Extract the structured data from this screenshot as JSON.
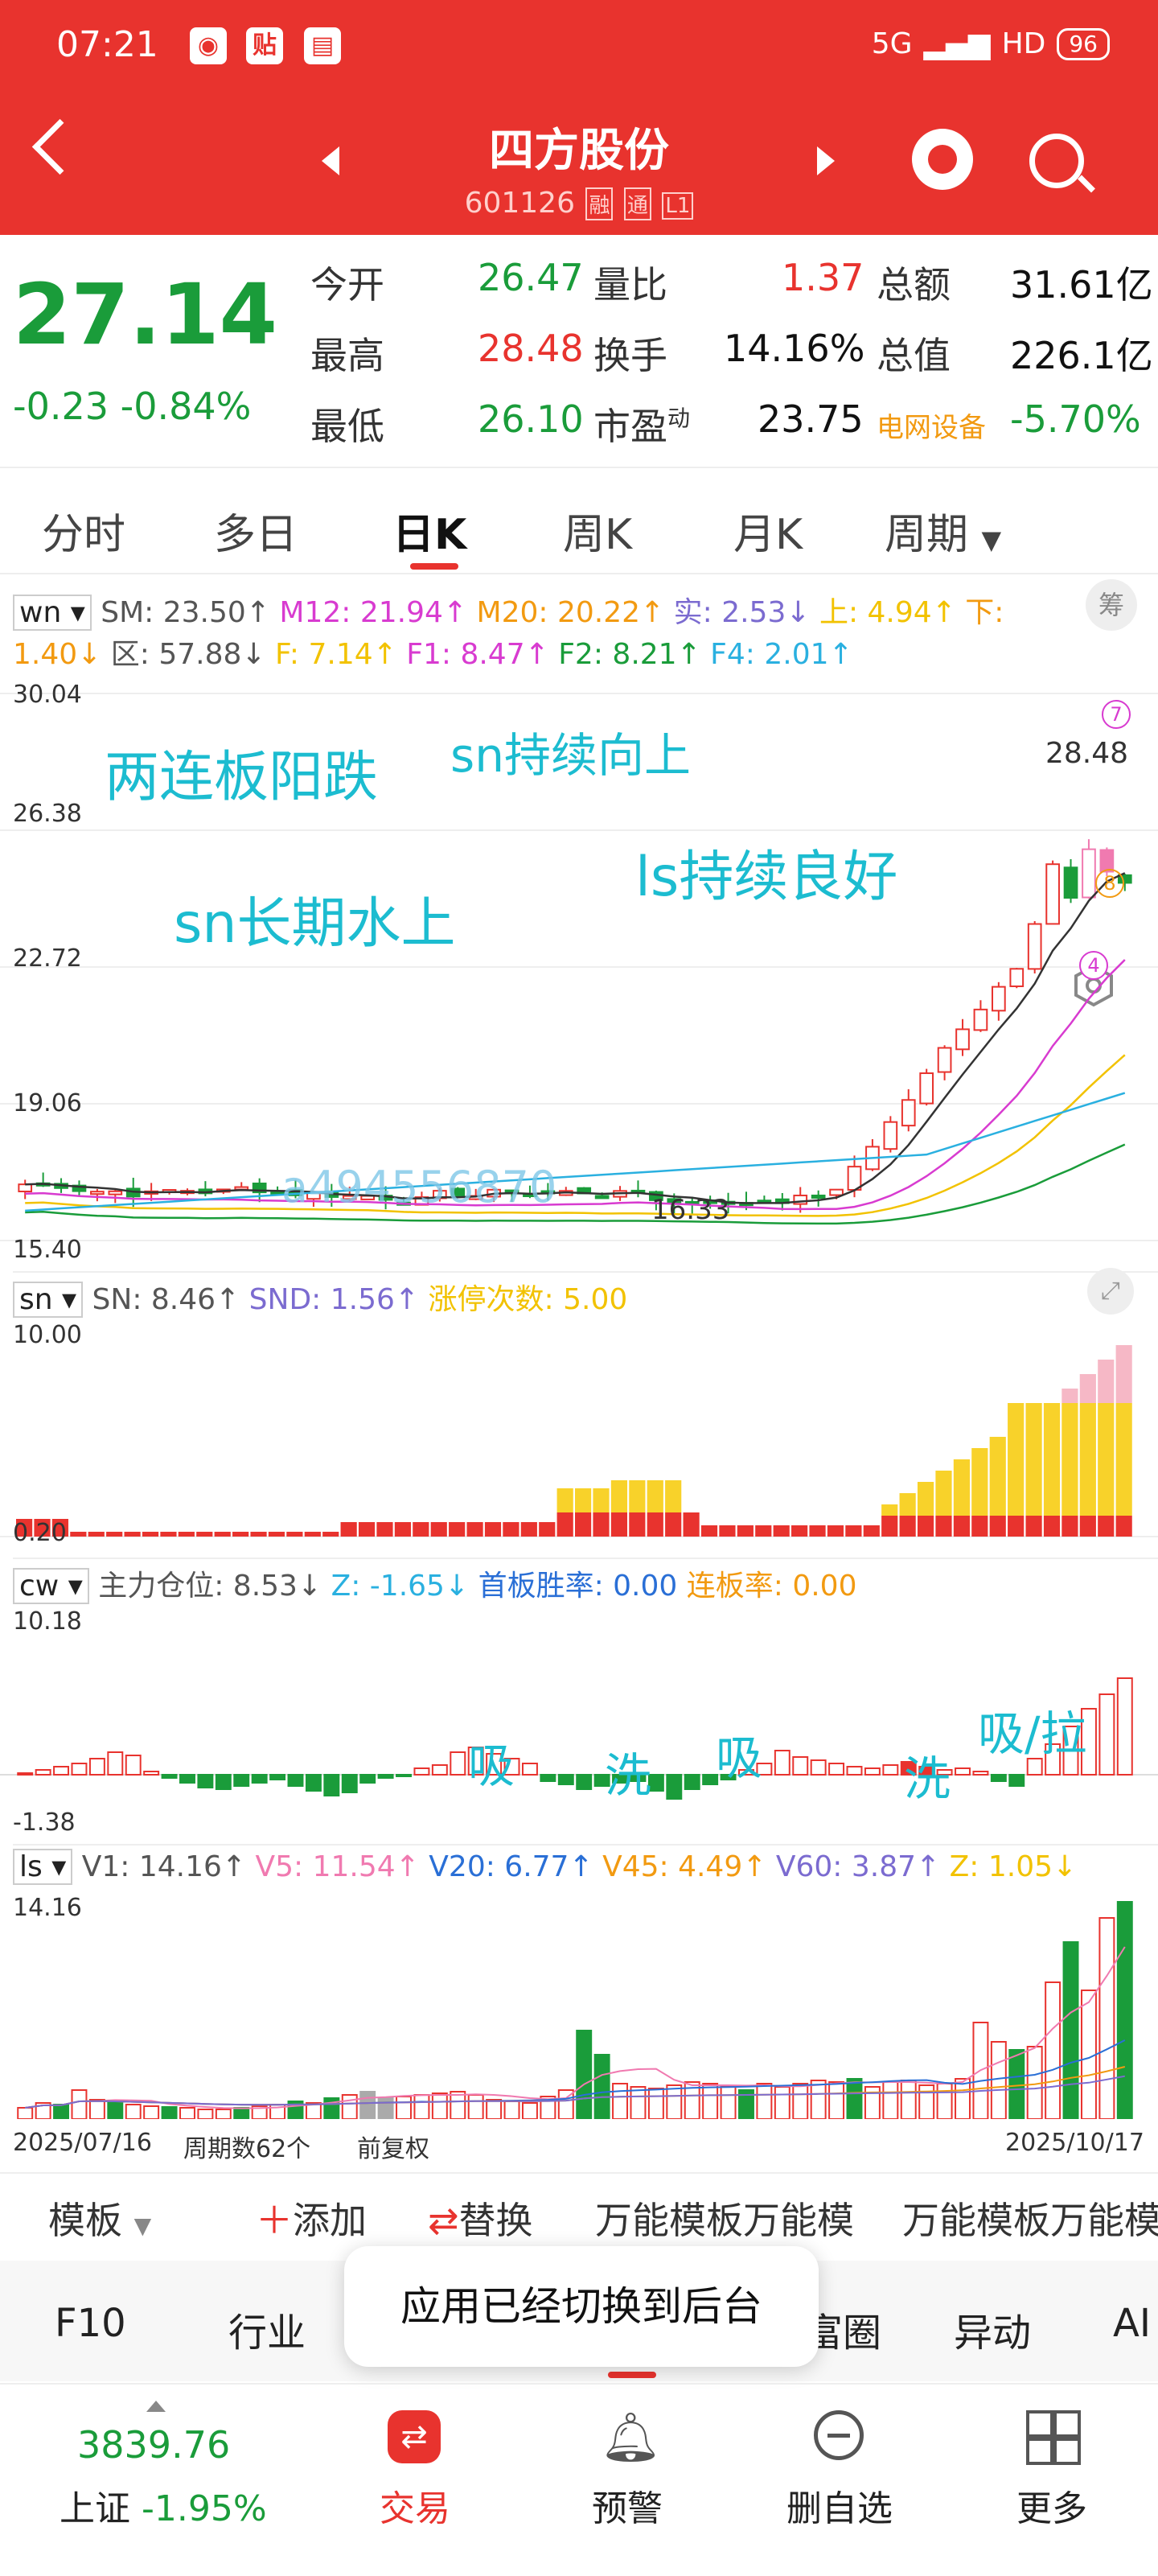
{
  "status": {
    "time": "07:21",
    "network": "5G",
    "hd": "HD",
    "battery": "96"
  },
  "header": {
    "title": "四方股份",
    "code": "601126",
    "tags": [
      "融",
      "通",
      "L1"
    ]
  },
  "quote": {
    "price": "27.14",
    "change": "-0.23",
    "change_pct": "-0.84%",
    "fields": [
      {
        "label": "今开",
        "value": "26.47"
      },
      {
        "label": "量比",
        "value": "1.37"
      },
      {
        "label": "总额",
        "value": "31.61亿"
      },
      {
        "label": "最高",
        "value": "28.48"
      },
      {
        "label": "换手",
        "value": "14.16%"
      },
      {
        "label": "总值",
        "value": "226.1亿"
      },
      {
        "label": "最低",
        "value": "26.10"
      },
      {
        "label": "市盈",
        "value": "23.75",
        "sup": "动"
      },
      {
        "label": "电网设备",
        "value": "-5.70%"
      }
    ]
  },
  "tabs": [
    "分时",
    "多日",
    "日K",
    "周K",
    "月K",
    "周期"
  ],
  "main_chart": {
    "selector": "wn",
    "legend": [
      {
        "text": "SM: 23.50↑",
        "color": "#555"
      },
      {
        "text": "M12: 21.94↑",
        "color": "#d83bd0"
      },
      {
        "text": "M20: 20.22↑",
        "color": "#f29a11"
      },
      {
        "text": "实: 2.53↓",
        "color": "#7b6bd0"
      },
      {
        "text": "上: 4.94↑",
        "color": "#f2c200"
      },
      {
        "text": "下:",
        "color": "#f29a11"
      }
    ],
    "legend2": [
      {
        "text": "1.40↓",
        "color": "#f29a11"
      },
      {
        "text": "区: 57.88↓",
        "color": "#555"
      },
      {
        "text": "F: 7.14↑",
        "color": "#f2c200"
      },
      {
        "text": "F1: 8.47↑",
        "color": "#d83bd0"
      },
      {
        "text": "F2: 8.21↑",
        "color": "#1a9c3a"
      },
      {
        "text": "F4: 2.01↑",
        "color": "#2ab0e0"
      }
    ],
    "right_button": "筹",
    "y_ticks": [
      "30.04",
      "26.38",
      "22.72",
      "19.06",
      "15.40"
    ],
    "high_label": "28.48",
    "low_label": "16.33",
    "watermark": "a494556870",
    "annotations": [
      "两连板阳跌",
      "sn持续向上",
      "ls持续良好",
      "sn长期水上"
    ],
    "markers": [
      "7",
      "8",
      "4"
    ]
  },
  "sn_panel": {
    "selector": "sn",
    "legend": [
      {
        "text": "SN: 8.46↑",
        "color": "#555"
      },
      {
        "text": "SND: 1.56↑",
        "color": "#7b6bd0"
      },
      {
        "text": "涨停次数: 5.00",
        "color": "#f2c200"
      }
    ],
    "y_ticks": [
      "10.00",
      "0.20"
    ]
  },
  "cw_panel": {
    "selector": "cw",
    "legend": [
      {
        "text": "主力仓位: 8.53↓",
        "color": "#555"
      },
      {
        "text": "Z: -1.65↓",
        "color": "#2ab0e0"
      },
      {
        "text": "首板胜率: 0.00",
        "color": "#2a6fd6"
      },
      {
        "text": "连板率: 0.00",
        "color": "#f29a11"
      }
    ],
    "y_ticks": [
      "10.18",
      "-1.38"
    ],
    "annotations": [
      "吸",
      "洗",
      "吸",
      "洗",
      "吸/拉"
    ]
  },
  "ls_panel": {
    "selector": "ls",
    "legend": [
      {
        "text": "V1: 14.16↑",
        "color": "#555"
      },
      {
        "text": "V5: 11.54↑",
        "color": "#f07ab0"
      },
      {
        "text": "V20: 6.77↑",
        "color": "#2a6fd6"
      },
      {
        "text": "V45: 4.49↑",
        "color": "#f29a11"
      },
      {
        "text": "V60: 3.87↑",
        "color": "#7b6bd0"
      },
      {
        "text": "Z: 1.05↓",
        "color": "#f2c200"
      }
    ],
    "y_top": "14.16",
    "date_start": "2025/07/16",
    "period_count": "周期数62个",
    "adjust": "前复权",
    "date_end": "2025/10/17"
  },
  "template_bar": [
    "模板",
    "添加",
    "替换",
    "万能模板万能模",
    "万能模板万能模"
  ],
  "bottom_tabs": [
    "F10",
    "行业",
    "富圈",
    "异动",
    "AI"
  ],
  "toast": "应用已经切换到后台",
  "index": {
    "value": "3839.76",
    "name": "上证",
    "change": "-1.95%"
  },
  "nav": [
    "交易",
    "预警",
    "删自选",
    "更多"
  ],
  "colors": {
    "brand": "#e8332e",
    "down": "#1a9c3a",
    "up": "#e8332e",
    "annotation": "#1cbcd0"
  }
}
